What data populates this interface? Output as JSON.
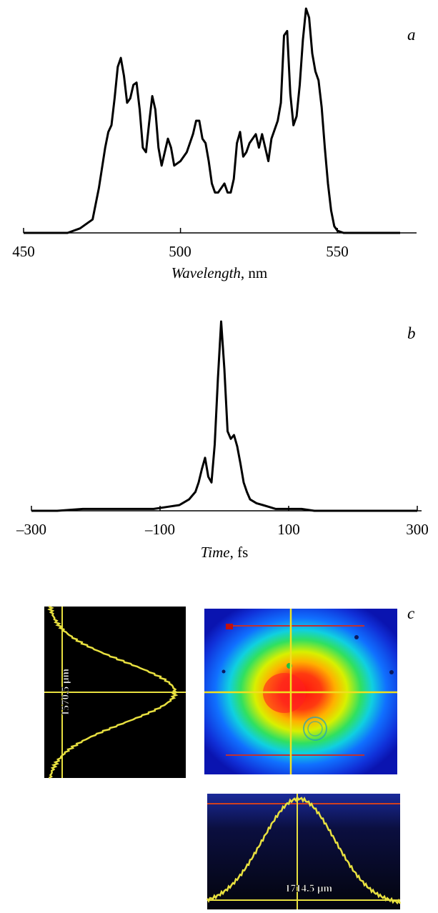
{
  "panels": {
    "a": "a",
    "b": "b",
    "c": "c"
  },
  "chart_data": [
    {
      "type": "line",
      "panel": "a",
      "xlabel_italic": "Wavelength",
      "xlabel_unit": ", nm",
      "xlim": [
        450,
        570
      ],
      "ylim": [
        0,
        1
      ],
      "x_ticks": [
        450,
        500,
        550
      ],
      "x_tick_labels": [
        "450",
        "500",
        "550"
      ],
      "grid": false,
      "series": [
        {
          "x": [
            450,
            464,
            468,
            472,
            474,
            476,
            477,
            478,
            479,
            480,
            481,
            482,
            483,
            484,
            485,
            486,
            487,
            488,
            489,
            490,
            491,
            492,
            493,
            494,
            495,
            496,
            497,
            498,
            500,
            502,
            504,
            505,
            506,
            507,
            508,
            509,
            510,
            511,
            512,
            513,
            514,
            515,
            516,
            517,
            518,
            519,
            520,
            521,
            522,
            523,
            524,
            525,
            526,
            527,
            528,
            529,
            530,
            531,
            532,
            533,
            534,
            535,
            536,
            537,
            538,
            539,
            540,
            541,
            542,
            543,
            544,
            545,
            546,
            547,
            548,
            549,
            550,
            552,
            555,
            560,
            565,
            570
          ],
          "y": [
            0.0,
            0.0,
            0.02,
            0.06,
            0.2,
            0.38,
            0.45,
            0.48,
            0.6,
            0.74,
            0.78,
            0.7,
            0.58,
            0.6,
            0.66,
            0.67,
            0.55,
            0.38,
            0.36,
            0.49,
            0.61,
            0.55,
            0.38,
            0.3,
            0.36,
            0.42,
            0.38,
            0.3,
            0.32,
            0.36,
            0.44,
            0.5,
            0.5,
            0.42,
            0.4,
            0.32,
            0.22,
            0.18,
            0.18,
            0.2,
            0.22,
            0.18,
            0.18,
            0.24,
            0.4,
            0.45,
            0.34,
            0.36,
            0.4,
            0.42,
            0.44,
            0.38,
            0.44,
            0.38,
            0.32,
            0.42,
            0.46,
            0.5,
            0.58,
            0.88,
            0.9,
            0.62,
            0.48,
            0.52,
            0.66,
            0.86,
            1.0,
            0.96,
            0.8,
            0.72,
            0.68,
            0.56,
            0.38,
            0.22,
            0.1,
            0.03,
            0.01,
            0.0,
            0.0,
            0.0,
            0.0,
            0.0
          ]
        }
      ]
    },
    {
      "type": "line",
      "panel": "b",
      "xlabel_italic": "Time",
      "xlabel_unit": ", fs",
      "xlim": [
        -300,
        300
      ],
      "ylim": [
        0,
        1
      ],
      "x_ticks": [
        -300,
        -100,
        100,
        300
      ],
      "x_tick_labels": [
        "–300",
        "–100",
        "100",
        "300"
      ],
      "grid": false,
      "series": [
        {
          "x": [
            -300,
            -260,
            -220,
            -180,
            -140,
            -110,
            -90,
            -70,
            -55,
            -45,
            -40,
            -35,
            -30,
            -25,
            -20,
            -15,
            -10,
            -5,
            0,
            5,
            10,
            15,
            20,
            25,
            30,
            35,
            40,
            50,
            60,
            70,
            80,
            100,
            120,
            140,
            180,
            220,
            260,
            300
          ],
          "y": [
            0.0,
            0.0,
            0.01,
            0.01,
            0.01,
            0.01,
            0.02,
            0.03,
            0.06,
            0.1,
            0.15,
            0.22,
            0.28,
            0.18,
            0.15,
            0.35,
            0.7,
            1.0,
            0.75,
            0.42,
            0.38,
            0.4,
            0.34,
            0.25,
            0.15,
            0.1,
            0.06,
            0.04,
            0.03,
            0.02,
            0.01,
            0.01,
            0.01,
            0.0,
            0.0,
            0.0,
            0.0,
            0.0
          ]
        }
      ]
    }
  ],
  "beam_images": {
    "vertical_profile_label": "1570.5 μm",
    "horizontal_profile_label": "1714.5 μm"
  }
}
